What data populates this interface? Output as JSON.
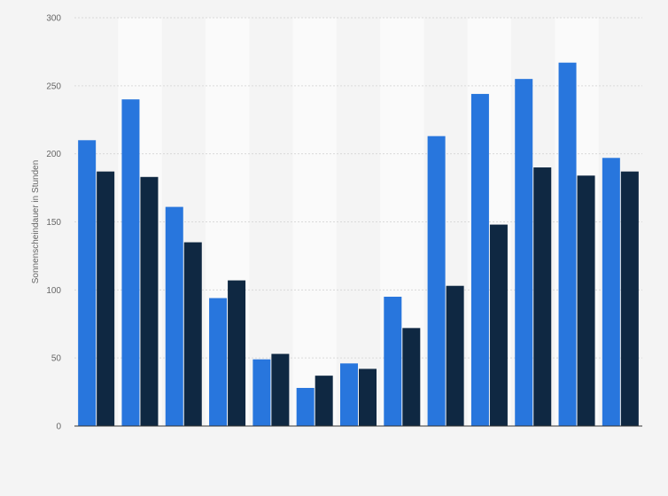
{
  "chart_data": {
    "type": "bar",
    "ylabel": "Sonnenscheindauer in Stunden",
    "ylim": [
      0,
      300
    ],
    "yticks": [
      0,
      50,
      100,
      150,
      200,
      250,
      300
    ],
    "grid": true,
    "category_count": 13,
    "series": [
      {
        "color": "#2876dd",
        "values": [
          210,
          240,
          161,
          94,
          49,
          28,
          46,
          95,
          213,
          244,
          255,
          267,
          197
        ]
      },
      {
        "color": "#0f2842",
        "values": [
          187,
          183,
          135,
          107,
          53,
          37,
          42,
          72,
          103,
          148,
          190,
          184,
          187
        ]
      }
    ],
    "colors": {
      "background": "#f4f4f4",
      "band": "#fafafa",
      "grid": "#d9d9d9",
      "axis": "#333333",
      "tick_text": "#666666"
    }
  }
}
